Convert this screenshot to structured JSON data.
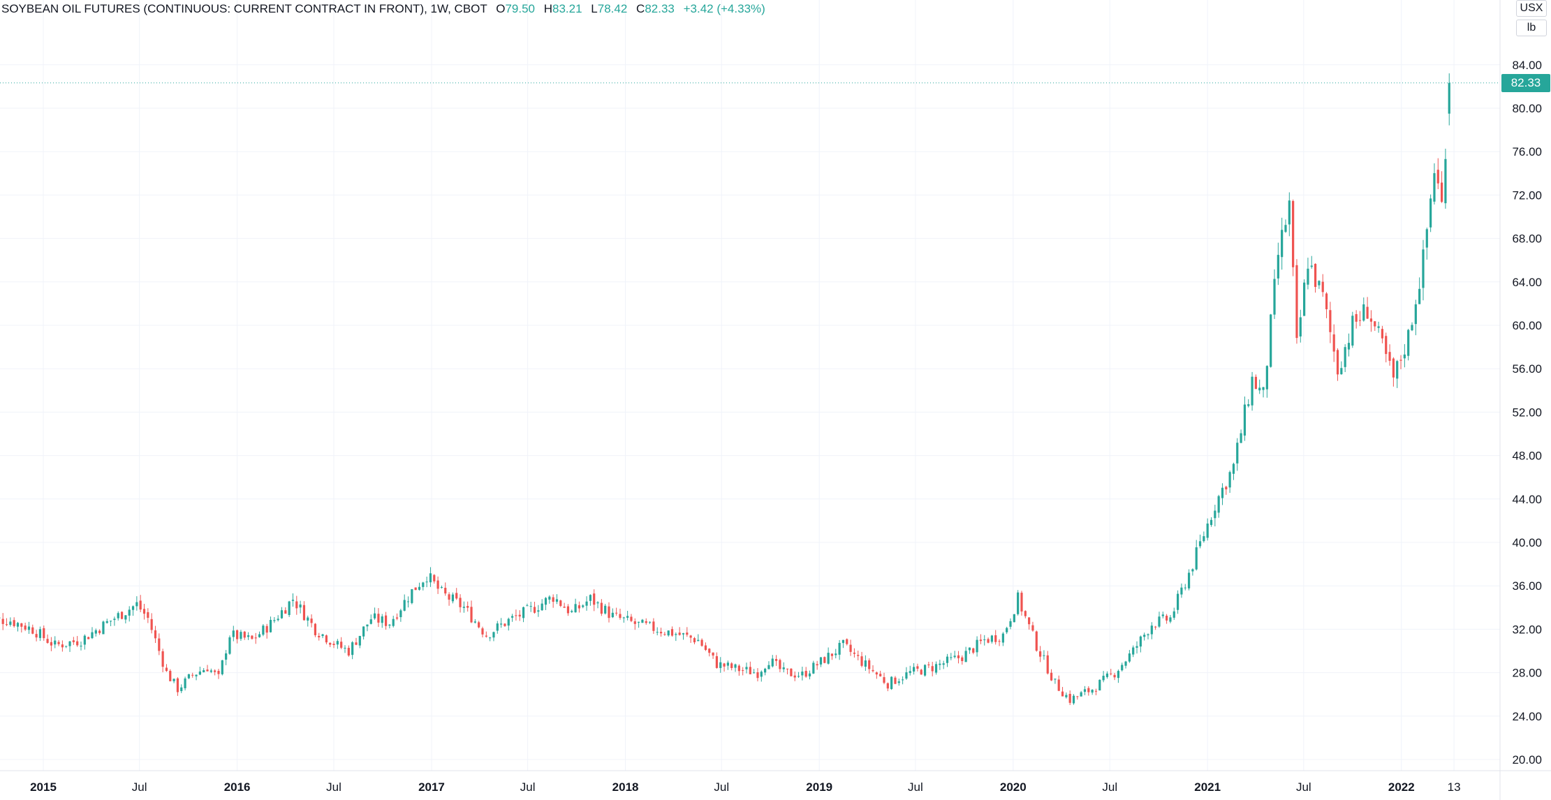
{
  "legend": {
    "title": "SOYBEAN OIL FUTURES (CONTINUOUS: CURRENT CONTRACT IN FRONT), 1W, CBOT",
    "o_label": "O",
    "o_value": "79.50",
    "h_label": "H",
    "h_value": "83.21",
    "l_label": "L",
    "l_value": "78.42",
    "c_label": "C",
    "c_value": "82.33",
    "change": "+3.42 (+4.33%)"
  },
  "currency_label": "USX",
  "unit_label": "lb",
  "last_price_label": "82.33",
  "colors": {
    "up": "#26a69a",
    "down": "#ef5350",
    "grid": "#f0f3fa",
    "axis_text": "#131722",
    "price_line": "#26a69a"
  },
  "chart_data": {
    "type": "candlestick",
    "title": "SOYBEAN OIL FUTURES (CONTINUOUS: CURRENT CONTRACT IN FRONT), 1W, CBOT",
    "xlabel": "",
    "ylabel": "",
    "interval": "1W",
    "ylim": [
      20,
      86
    ],
    "y_ticks": [
      "84.00",
      "80.00",
      "76.00",
      "72.00",
      "68.00",
      "64.00",
      "60.00",
      "56.00",
      "52.00",
      "48.00",
      "44.00",
      "40.00",
      "36.00",
      "32.00",
      "28.00",
      "24.00",
      "20.00"
    ],
    "x_ticks": [
      "2015",
      "Jul",
      "2016",
      "Jul",
      "2017",
      "Jul",
      "2018",
      "Jul",
      "2019",
      "Jul",
      "2020",
      "Jul",
      "2021",
      "Jul",
      "2022",
      "13"
    ],
    "x_ticks_bold": [
      true,
      false,
      true,
      false,
      true,
      false,
      true,
      false,
      true,
      false,
      true,
      false,
      true,
      false,
      true,
      false
    ],
    "date_range": [
      "2014-09-12",
      "2022-04-01"
    ],
    "close_path": [
      [
        "2014-09-12",
        33.0
      ],
      [
        "2014-10-31",
        32.8
      ],
      [
        "2014-12-12",
        32.0
      ],
      [
        "2015-01-23",
        30.5
      ],
      [
        "2015-03-13",
        31.0
      ],
      [
        "2015-05-01",
        32.6
      ],
      [
        "2015-06-26",
        34.3
      ],
      [
        "2015-07-17",
        33.0
      ],
      [
        "2015-08-21",
        28.0
      ],
      [
        "2015-09-11",
        26.5
      ],
      [
        "2015-10-09",
        27.8
      ],
      [
        "2015-11-06",
        28.5
      ],
      [
        "2015-11-27",
        27.5
      ],
      [
        "2015-12-18",
        31.5
      ],
      [
        "2016-01-29",
        31.0
      ],
      [
        "2016-03-04",
        32.5
      ],
      [
        "2016-04-15",
        34.8
      ],
      [
        "2016-05-27",
        32.0
      ],
      [
        "2016-07-08",
        30.5
      ],
      [
        "2016-07-29",
        30.0
      ],
      [
        "2016-09-09",
        33.0
      ],
      [
        "2016-10-14",
        32.6
      ],
      [
        "2016-11-25",
        35.5
      ],
      [
        "2016-12-23",
        37.0
      ],
      [
        "2017-01-20",
        35.3
      ],
      [
        "2017-03-03",
        34.0
      ],
      [
        "2017-04-14",
        31.5
      ],
      [
        "2017-05-26",
        32.8
      ],
      [
        "2017-07-07",
        33.8
      ],
      [
        "2017-08-18",
        35.0
      ],
      [
        "2017-09-22",
        33.5
      ],
      [
        "2017-10-27",
        34.8
      ],
      [
        "2017-12-08",
        33.2
      ],
      [
        "2018-01-19",
        32.5
      ],
      [
        "2018-03-02",
        32.0
      ],
      [
        "2018-04-13",
        31.5
      ],
      [
        "2018-05-18",
        31.0
      ],
      [
        "2018-06-22",
        28.8
      ],
      [
        "2018-08-03",
        28.3
      ],
      [
        "2018-09-07",
        28.0
      ],
      [
        "2018-09-28",
        29.2
      ],
      [
        "2018-10-26",
        28.0
      ],
      [
        "2018-11-30",
        27.8
      ],
      [
        "2019-01-04",
        29.0
      ],
      [
        "2019-02-15",
        30.5
      ],
      [
        "2019-03-22",
        29.0
      ],
      [
        "2019-05-10",
        27.0
      ],
      [
        "2019-06-21",
        28.0
      ],
      [
        "2019-08-02",
        28.5
      ],
      [
        "2019-09-27",
        29.5
      ],
      [
        "2019-11-08",
        31.0
      ],
      [
        "2019-12-13",
        31.5
      ],
      [
        "2020-01-10",
        34.8
      ],
      [
        "2020-02-14",
        30.5
      ],
      [
        "2020-03-20",
        27.0
      ],
      [
        "2020-04-17",
        25.5
      ],
      [
        "2020-05-29",
        26.5
      ],
      [
        "2020-07-10",
        28.0
      ],
      [
        "2020-08-14",
        30.0
      ],
      [
        "2020-09-18",
        32.5
      ],
      [
        "2020-10-23",
        33.0
      ],
      [
        "2020-12-04",
        38.0
      ],
      [
        "2021-01-15",
        43.5
      ],
      [
        "2021-02-19",
        47.0
      ],
      [
        "2021-03-26",
        55.0
      ],
      [
        "2021-04-16",
        53.5
      ],
      [
        "2021-05-14",
        66.5
      ],
      [
        "2021-06-04",
        71.0
      ],
      [
        "2021-06-18",
        58.0
      ],
      [
        "2021-07-09",
        66.0
      ],
      [
        "2021-08-06",
        62.5
      ],
      [
        "2021-09-03",
        56.0
      ],
      [
        "2021-10-01",
        60.0
      ],
      [
        "2021-10-29",
        61.5
      ],
      [
        "2021-11-26",
        58.0
      ],
      [
        "2021-12-17",
        55.0
      ],
      [
        "2022-01-14",
        59.0
      ],
      [
        "2022-02-11",
        66.0
      ],
      [
        "2022-03-04",
        74.5
      ],
      [
        "2022-03-18",
        71.0
      ],
      [
        "2022-04-01",
        82.33
      ]
    ]
  }
}
